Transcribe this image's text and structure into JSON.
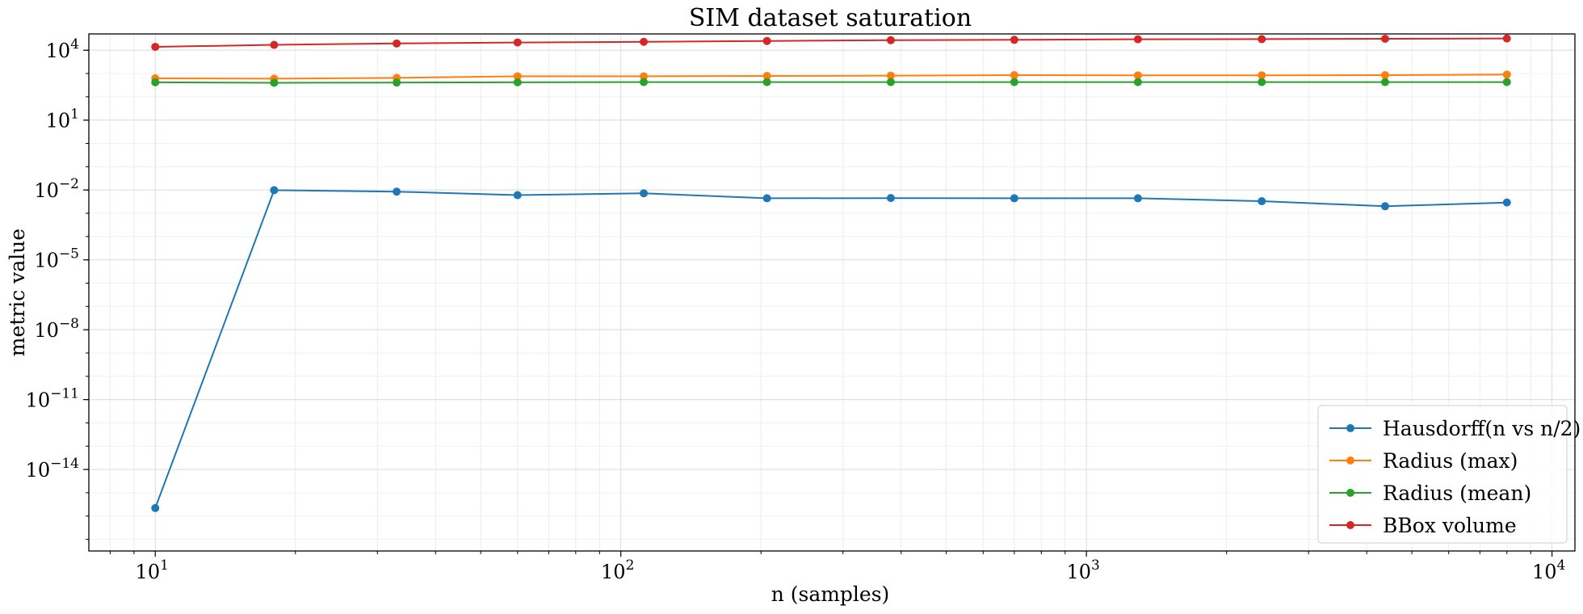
{
  "chart_data": {
    "type": "line",
    "title": "SIM dataset saturation",
    "xlabel": "n (samples)",
    "ylabel": "metric value",
    "xscale": "log",
    "yscale": "log",
    "xlim": [
      7.2,
      11200
    ],
    "ylim_exp": [
      -17.5,
      4.7
    ],
    "grid": true,
    "legend_position": "lower-right",
    "x_ticks": [
      {
        "value": 10,
        "label_base": "10",
        "label_exp": "1"
      },
      {
        "value": 100,
        "label_base": "10",
        "label_exp": "2"
      },
      {
        "value": 1000,
        "label_base": "10",
        "label_exp": "3"
      },
      {
        "value": 10000,
        "label_base": "10",
        "label_exp": "4"
      }
    ],
    "y_ticks": [
      {
        "exp": 4,
        "label_base": "10",
        "label_exp": "4"
      },
      {
        "exp": 1,
        "label_base": "10",
        "label_exp": "1"
      },
      {
        "exp": -2,
        "label_base": "10",
        "label_exp": "−2"
      },
      {
        "exp": -5,
        "label_base": "10",
        "label_exp": "−5"
      },
      {
        "exp": -8,
        "label_base": "10",
        "label_exp": "−8"
      },
      {
        "exp": -11,
        "label_base": "10",
        "label_exp": "−11"
      },
      {
        "exp": -14,
        "label_base": "10",
        "label_exp": "−14"
      }
    ],
    "x": [
      10,
      18,
      33,
      60,
      112,
      206,
      380,
      700,
      1290,
      2380,
      4380,
      8000
    ],
    "series": [
      {
        "name": "Hausdorff(n vs n/2)",
        "color": "#1f77b4",
        "values": [
          2.2e-16,
          0.0098,
          0.0085,
          0.006,
          0.0072,
          0.0044,
          0.0045,
          0.0044,
          0.0044,
          0.0033,
          0.002,
          0.0029
        ]
      },
      {
        "name": "Radius (max)",
        "color": "#ff7f0e",
        "values": [
          620,
          600,
          650,
          760,
          760,
          790,
          810,
          850,
          830,
          840,
          850,
          900
        ]
      },
      {
        "name": "Radius (mean)",
        "color": "#2ca02c",
        "values": [
          420,
          400,
          410,
          420,
          430,
          430,
          430,
          430,
          430,
          430,
          430,
          430
        ]
      },
      {
        "name": "BBox volume",
        "color": "#d62728",
        "values": [
          14000,
          17000,
          19500,
          21500,
          23000,
          25000,
          27000,
          28000,
          29500,
          30000,
          31000,
          32000
        ]
      }
    ]
  }
}
